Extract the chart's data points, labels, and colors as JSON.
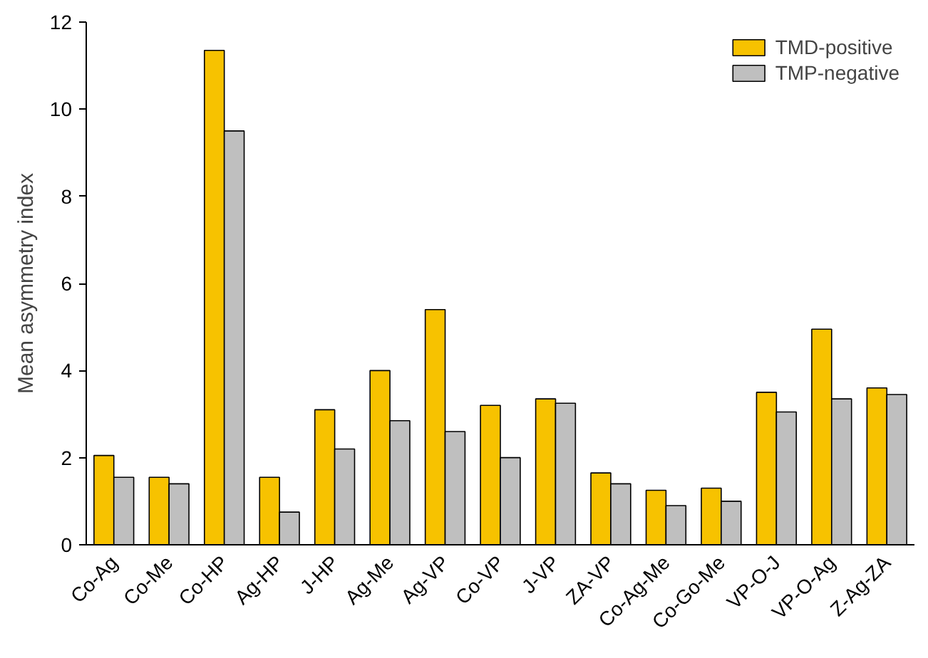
{
  "chart_data": {
    "type": "bar",
    "ylabel": "Mean asymmetry index",
    "categories": [
      "Co-Ag",
      "Co-Me",
      "Co-HP",
      "Ag-HP",
      "J-HP",
      "Ag-Me",
      "Ag-VP",
      "Co-VP",
      "J-VP",
      "ZA-VP",
      "Co-Ag-Me",
      "Co-Go-Me",
      "VP-O-J",
      "VP-O-Ag",
      "Z-Ag-ZA"
    ],
    "series": [
      {
        "name": "TMD-positive",
        "color": "#f7c200",
        "values": [
          2.05,
          1.55,
          11.35,
          1.55,
          3.1,
          4.0,
          5.4,
          3.2,
          3.35,
          1.65,
          1.25,
          1.3,
          3.5,
          4.95,
          3.6
        ]
      },
      {
        "name": "TMP-negative",
        "color": "#bfbfbf",
        "values": [
          1.55,
          1.4,
          9.5,
          0.75,
          2.2,
          2.85,
          2.6,
          2.0,
          3.25,
          1.4,
          0.9,
          1.0,
          3.05,
          3.35,
          3.45
        ]
      }
    ],
    "ylim": [
      0,
      12
    ],
    "yticks": [
      0,
      2,
      4,
      6,
      8,
      10,
      12
    ],
    "grid": false,
    "legend": "top right"
  }
}
